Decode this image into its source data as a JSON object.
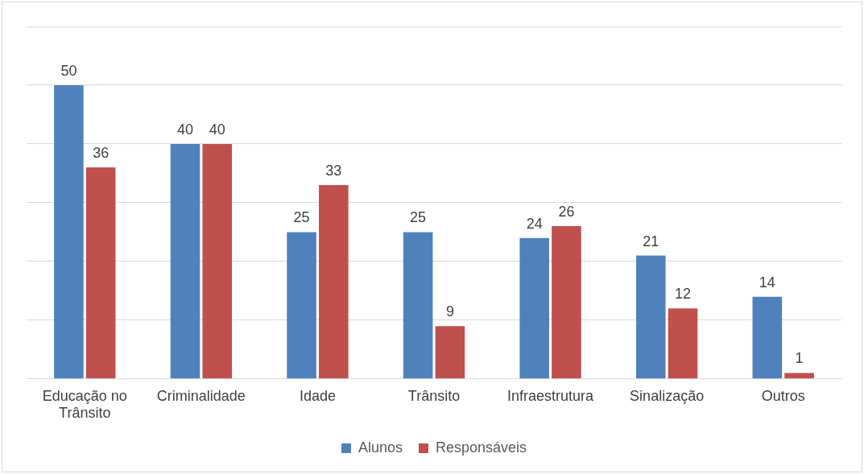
{
  "chart_data": {
    "type": "bar",
    "categories": [
      "Educação no Trânsito",
      "Criminalidade",
      "Idade",
      "Trânsito",
      "Infraestrutura",
      "Sinalização",
      "Outros"
    ],
    "series": [
      {
        "name": "Alunos",
        "color": "#4f81bd",
        "values": [
          50,
          40,
          25,
          25,
          24,
          21,
          14
        ]
      },
      {
        "name": "Responsáveis",
        "color": "#c0504d",
        "values": [
          36,
          40,
          33,
          9,
          26,
          12,
          1
        ]
      }
    ],
    "ylim": [
      0,
      60
    ],
    "yticks": [
      {
        "value": 0,
        "label": null
      },
      {
        "value": 10,
        "label": null
      },
      {
        "value": 20,
        "label": null
      },
      {
        "value": 30,
        "label": null
      },
      {
        "value": 40,
        "label": null
      },
      {
        "value": 50,
        "label": null
      },
      {
        "value": 60,
        "label": null
      }
    ],
    "tick_labels": "x",
    "grid": "y",
    "legend": "bottom",
    "data_labels": true
  }
}
